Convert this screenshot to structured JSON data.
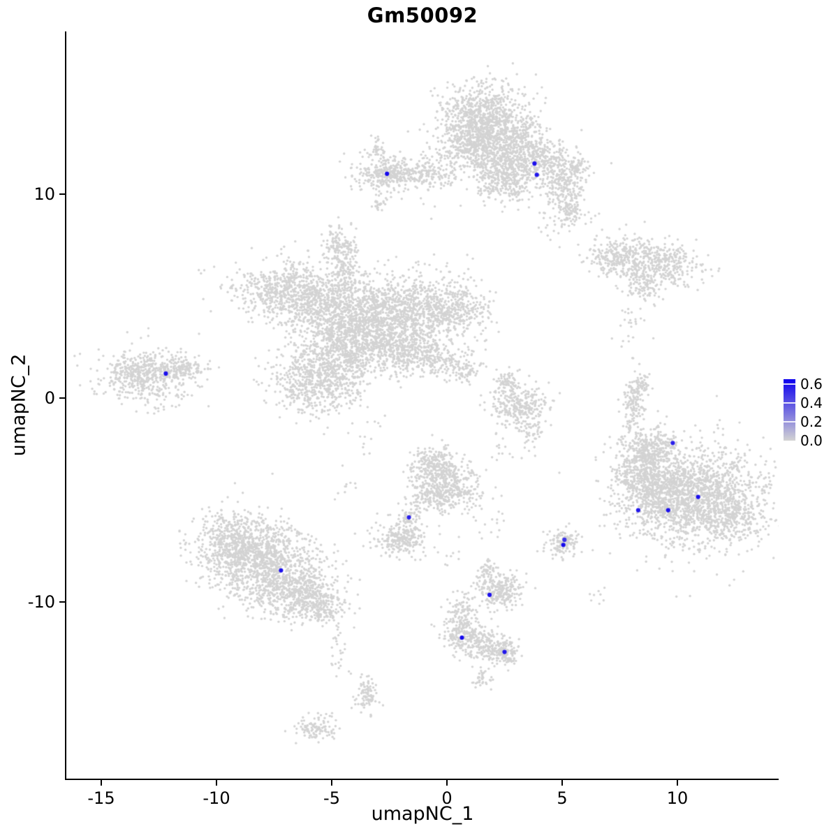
{
  "chart_data": {
    "type": "scatter",
    "title": "Gm50092",
    "xlabel": "umapNC_1",
    "ylabel": "umapNC_2",
    "x_ticks": [
      -15,
      -10,
      -5,
      0,
      5,
      10
    ],
    "y_ticks": [
      10,
      0,
      -10
    ],
    "x_range": [
      -16.5,
      14.4
    ],
    "y_range": [
      -18.7,
      18.0
    ],
    "grid": false,
    "point_color": "#d3d3d3",
    "legend": {
      "position": "right",
      "ticks": [
        "0.6",
        "0.4",
        "0.2",
        "0.0"
      ],
      "tick_values": [
        0.6,
        0.4,
        0.2,
        0.0
      ],
      "max_value": 0.65,
      "low_color": "#d3d3d3",
      "high_color": "#0d00ee"
    },
    "background_clusters": [
      {
        "cx": 1.6,
        "cy": 13.8,
        "sx": 0.9,
        "sy": 0.85,
        "n": 850
      },
      {
        "cx": 1.0,
        "cy": 12.6,
        "sx": 0.6,
        "sy": 0.6,
        "n": 300
      },
      {
        "cx": 3.2,
        "cy": 12.9,
        "sx": 0.5,
        "sy": 0.5,
        "n": 180
      },
      {
        "cx": 2.3,
        "cy": 11.6,
        "sx": 0.7,
        "sy": 0.7,
        "n": 350
      },
      {
        "cx": 2.6,
        "cy": 10.4,
        "sx": 0.6,
        "sy": 0.4,
        "n": 180
      },
      {
        "cx": 3.9,
        "cy": 11.8,
        "sx": 0.8,
        "sy": 0.55,
        "n": 350
      },
      {
        "cx": 5.6,
        "cy": 11.2,
        "sx": 0.3,
        "sy": 0.4,
        "n": 60
      },
      {
        "cx": 4.9,
        "cy": 10.6,
        "sx": 0.45,
        "sy": 0.7,
        "n": 220
      },
      {
        "cx": 5.3,
        "cy": 9.3,
        "sx": 0.35,
        "sy": 0.5,
        "n": 100
      },
      {
        "cx": 0.0,
        "cy": 11.3,
        "sx": 0.9,
        "sy": 0.7,
        "n": 90
      },
      {
        "cx": -2.5,
        "cy": 11.0,
        "sx": 0.75,
        "sy": 0.4,
        "n": 320
      },
      {
        "cx": -1.2,
        "cy": 11.0,
        "sx": 0.8,
        "sy": 0.3,
        "n": 120
      },
      {
        "cx": -3.0,
        "cy": 12.2,
        "sx": 0.2,
        "sy": 0.25,
        "n": 40
      },
      {
        "cx": -2.9,
        "cy": 9.5,
        "sx": 0.15,
        "sy": 0.3,
        "n": 25
      },
      {
        "cx": 7.6,
        "cy": 6.9,
        "sx": 0.75,
        "sy": 0.5,
        "n": 280
      },
      {
        "cx": 9.4,
        "cy": 6.6,
        "sx": 0.8,
        "sy": 0.55,
        "n": 330
      },
      {
        "cx": 8.6,
        "cy": 5.6,
        "sx": 0.4,
        "sy": 0.4,
        "n": 90
      },
      {
        "cx": 8.0,
        "cy": 3.9,
        "sx": 0.3,
        "sy": 1.0,
        "n": 30
      },
      {
        "cx": -4.7,
        "cy": 7.5,
        "sx": 0.4,
        "sy": 0.5,
        "n": 130
      },
      {
        "cx": -4.4,
        "cy": 6.3,
        "sx": 0.3,
        "sy": 0.55,
        "n": 110
      },
      {
        "cx": -6.9,
        "cy": 5.3,
        "sx": 1.1,
        "sy": 0.7,
        "n": 650
      },
      {
        "cx": -5.0,
        "cy": 4.2,
        "sx": 1.0,
        "sy": 0.9,
        "n": 600
      },
      {
        "cx": -3.3,
        "cy": 3.3,
        "sx": 1.1,
        "sy": 1.0,
        "n": 800
      },
      {
        "cx": -1.7,
        "cy": 4.4,
        "sx": 1.3,
        "sy": 0.9,
        "n": 800
      },
      {
        "cx": 0.3,
        "cy": 4.4,
        "sx": 0.8,
        "sy": 0.7,
        "n": 300
      },
      {
        "cx": -5.6,
        "cy": 0.9,
        "sx": 1.0,
        "sy": 0.85,
        "n": 650
      },
      {
        "cx": -4.6,
        "cy": 2.2,
        "sx": 0.7,
        "sy": 0.7,
        "n": 300
      },
      {
        "cx": -2.0,
        "cy": 2.4,
        "sx": 0.7,
        "sy": 0.45,
        "n": 220
      },
      {
        "cx": -0.6,
        "cy": 1.9,
        "sx": 0.8,
        "sy": 0.4,
        "n": 200
      },
      {
        "cx": 0.7,
        "cy": 1.4,
        "sx": 0.4,
        "sy": 0.3,
        "n": 70
      },
      {
        "cx": -13.2,
        "cy": 1.1,
        "sx": 0.95,
        "sy": 0.6,
        "n": 500
      },
      {
        "cx": -11.6,
        "cy": 1.5,
        "sx": 0.6,
        "sy": 0.35,
        "n": 160
      },
      {
        "cx": 3.1,
        "cy": -0.4,
        "sx": 0.6,
        "sy": 0.55,
        "n": 300
      },
      {
        "cx": 2.6,
        "cy": 0.7,
        "sx": 0.3,
        "sy": 0.35,
        "n": 70
      },
      {
        "cx": 3.6,
        "cy": -1.8,
        "sx": 0.3,
        "sy": 0.4,
        "n": 35
      },
      {
        "cx": 8.1,
        "cy": -0.3,
        "sx": 0.2,
        "sy": 0.65,
        "n": 130
      },
      {
        "cx": 8.5,
        "cy": 0.6,
        "sx": 0.15,
        "sy": 0.3,
        "n": 40
      },
      {
        "cx": 10.9,
        "cy": -4.9,
        "sx": 1.5,
        "sy": 1.25,
        "n": 1500
      },
      {
        "cx": 9.2,
        "cy": -4.5,
        "sx": 0.9,
        "sy": 1.0,
        "n": 600
      },
      {
        "cx": 8.3,
        "cy": -3.4,
        "sx": 0.6,
        "sy": 0.8,
        "n": 300
      },
      {
        "cx": 9.0,
        "cy": -2.4,
        "sx": 0.6,
        "sy": 0.5,
        "n": 220
      },
      {
        "cx": 12.3,
        "cy": -5.8,
        "sx": 0.6,
        "sy": 0.6,
        "n": 200
      },
      {
        "cx": -0.6,
        "cy": -3.3,
        "sx": 0.55,
        "sy": 0.5,
        "n": 260
      },
      {
        "cx": 0.3,
        "cy": -4.4,
        "sx": 0.6,
        "sy": 0.6,
        "n": 300
      },
      {
        "cx": -0.8,
        "cy": -4.8,
        "sx": 0.4,
        "sy": 0.4,
        "n": 130
      },
      {
        "cx": -1.6,
        "cy": -5.9,
        "sx": 0.25,
        "sy": 0.35,
        "n": 60
      },
      {
        "cx": -2.1,
        "cy": -6.9,
        "sx": 0.55,
        "sy": 0.45,
        "n": 240
      },
      {
        "cx": -9.0,
        "cy": -7.2,
        "sx": 1.0,
        "sy": 0.85,
        "n": 750
      },
      {
        "cx": -7.6,
        "cy": -8.4,
        "sx": 1.2,
        "sy": 0.95,
        "n": 900
      },
      {
        "cx": -6.2,
        "cy": -9.7,
        "sx": 0.8,
        "sy": 0.6,
        "n": 380
      },
      {
        "cx": -5.4,
        "cy": -10.4,
        "sx": 0.4,
        "sy": 0.35,
        "n": 100
      },
      {
        "cx": -4.7,
        "cy": -12.2,
        "sx": 0.25,
        "sy": 0.9,
        "n": 35
      },
      {
        "cx": 2.3,
        "cy": -9.4,
        "sx": 0.5,
        "sy": 0.45,
        "n": 240
      },
      {
        "cx": 1.7,
        "cy": -8.5,
        "sx": 0.2,
        "sy": 0.3,
        "n": 40
      },
      {
        "cx": 5.0,
        "cy": -7.1,
        "sx": 0.35,
        "sy": 0.4,
        "n": 130
      },
      {
        "cx": 0.6,
        "cy": -10.6,
        "sx": 0.3,
        "sy": 0.5,
        "n": 110
      },
      {
        "cx": 0.8,
        "cy": -11.7,
        "sx": 0.5,
        "sy": 0.45,
        "n": 200
      },
      {
        "cx": 1.9,
        "cy": -12.2,
        "sx": 0.5,
        "sy": 0.4,
        "n": 170
      },
      {
        "cx": 2.6,
        "cy": -12.6,
        "sx": 0.3,
        "sy": 0.3,
        "n": 90
      },
      {
        "cx": 1.5,
        "cy": -13.7,
        "sx": 0.2,
        "sy": 0.25,
        "n": 35
      },
      {
        "cx": -3.5,
        "cy": -14.6,
        "sx": 0.25,
        "sy": 0.5,
        "n": 90
      },
      {
        "cx": -5.7,
        "cy": -16.2,
        "sx": 0.5,
        "sy": 0.3,
        "n": 110
      },
      {
        "cx": -10.7,
        "cy": 6.3,
        "sx": 0.1,
        "sy": 0.1,
        "n": 3
      },
      {
        "cx": 2.3,
        "cy": -2.6,
        "sx": 0.3,
        "sy": 0.3,
        "n": 12
      },
      {
        "cx": 4.4,
        "cy": 8.6,
        "sx": 0.3,
        "sy": 0.4,
        "n": 15
      },
      {
        "cx": 6.1,
        "cy": 8.9,
        "sx": 0.2,
        "sy": 0.2,
        "n": 6
      },
      {
        "cx": -3.4,
        "cy": -2.0,
        "sx": 0.4,
        "sy": 0.6,
        "n": 14
      },
      {
        "cx": 0.3,
        "cy": -7.6,
        "sx": 0.4,
        "sy": 0.5,
        "n": 12
      },
      {
        "cx": 2.0,
        "cy": -6.5,
        "sx": 0.3,
        "sy": 0.4,
        "n": 10
      },
      {
        "cx": -4.4,
        "cy": -4.6,
        "sx": 0.3,
        "sy": 0.5,
        "n": 10
      },
      {
        "cx": -12.6,
        "cy": -0.6,
        "sx": 0.3,
        "sy": 0.2,
        "n": 8
      },
      {
        "cx": 6.6,
        "cy": -9.8,
        "sx": 0.3,
        "sy": 0.3,
        "n": 8
      }
    ],
    "expressing_cells": [
      {
        "x": -2.6,
        "y": 11.0,
        "v": 0.62
      },
      {
        "x": 3.8,
        "y": 11.5,
        "v": 0.6
      },
      {
        "x": 3.9,
        "y": 10.95,
        "v": 0.58
      },
      {
        "x": -12.2,
        "y": 1.2,
        "v": 0.6
      },
      {
        "x": 9.8,
        "y": -2.2,
        "v": 0.55
      },
      {
        "x": 10.9,
        "y": -4.85,
        "v": 0.6
      },
      {
        "x": 8.3,
        "y": -5.5,
        "v": 0.58
      },
      {
        "x": 9.6,
        "y": -5.5,
        "v": 0.6
      },
      {
        "x": -1.65,
        "y": -5.85,
        "v": 0.55
      },
      {
        "x": 5.1,
        "y": -6.95,
        "v": 0.5
      },
      {
        "x": 5.05,
        "y": -7.2,
        "v": 0.62
      },
      {
        "x": -7.2,
        "y": -8.45,
        "v": 0.6
      },
      {
        "x": 1.85,
        "y": -9.65,
        "v": 0.6
      },
      {
        "x": 0.65,
        "y": -11.75,
        "v": 0.62
      },
      {
        "x": 2.5,
        "y": -12.45,
        "v": 0.58
      }
    ]
  },
  "style": {
    "axis_color": "#000000",
    "text_color": "#000000",
    "background_color": "#ffffff"
  }
}
